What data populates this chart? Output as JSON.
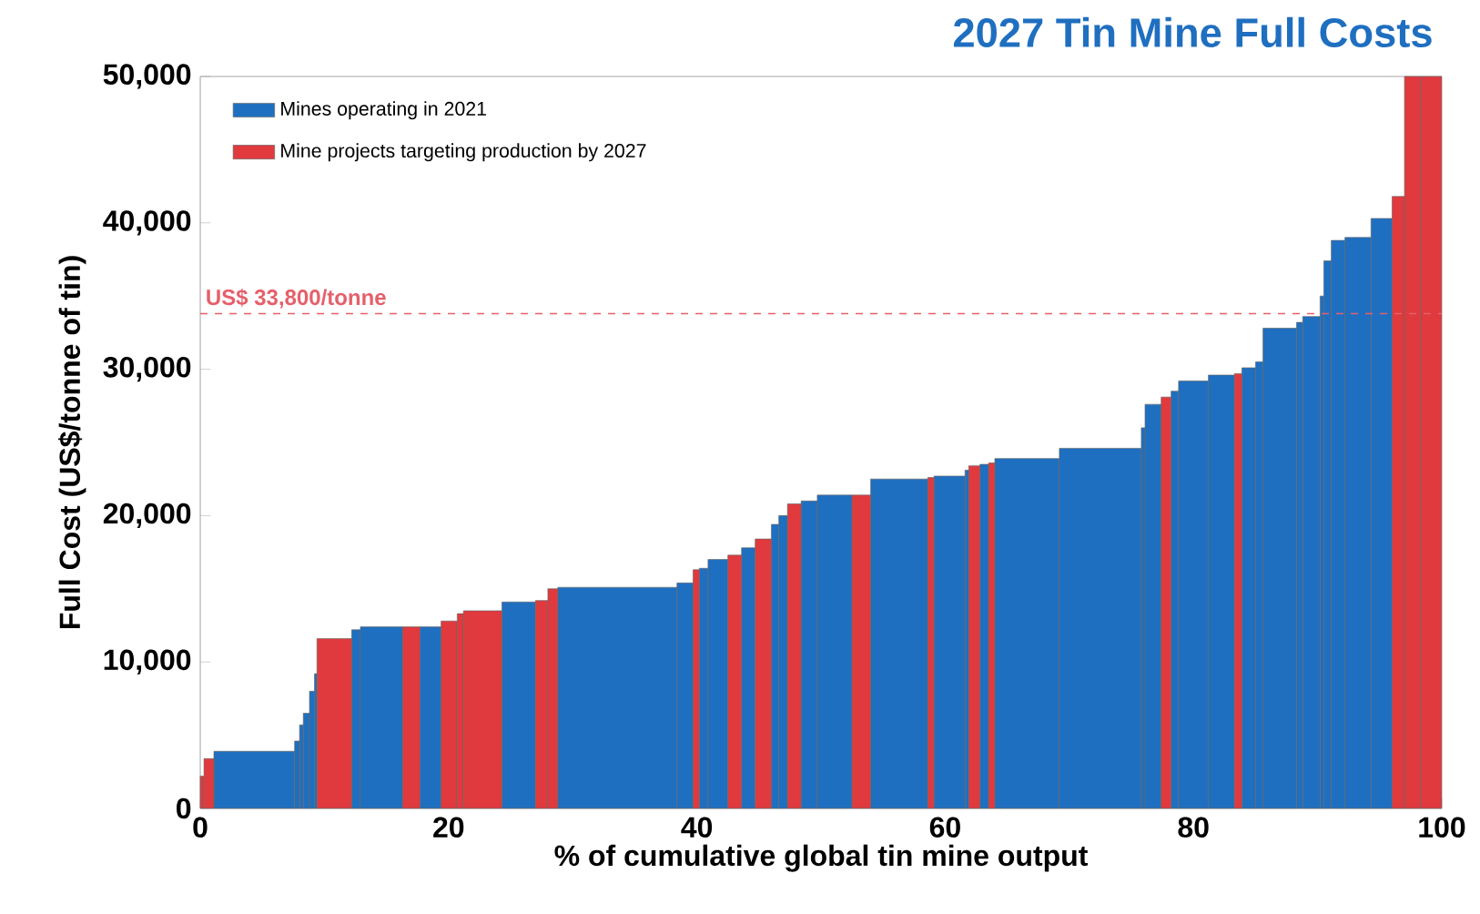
{
  "chart_data": {
    "type": "histogram",
    "title": "2027 Tin Mine Full Costs",
    "xlabel": "% of cumulative global tin mine output",
    "ylabel": "Full Cost (US$/tonne of tin)",
    "bins": [
      0,
      0.3,
      1.1,
      7.6,
      8.0,
      8.3,
      8.8,
      9.2,
      9.4,
      12.2,
      12.9,
      16.3,
      17.7,
      19.4,
      20.7,
      21.2,
      24.3,
      27.0,
      28.0,
      28.8,
      38.4,
      39.7,
      40.2,
      40.9,
      42.5,
      43.6,
      44.7,
      46.0,
      46.6,
      47.3,
      48.4,
      49.7,
      52.5,
      54.0,
      58.6,
      59.1,
      61.6,
      61.9,
      62.8,
      63.5,
      64.0,
      69.2,
      75.8,
      76.1,
      77.4,
      78.2,
      78.8,
      81.2,
      83.3,
      83.9,
      85.0,
      85.6,
      88.3,
      88.8,
      90.2,
      90.5,
      91.1,
      92.2,
      94.3,
      96.0,
      97.0,
      98.3,
      100
    ],
    "series": [
      {
        "name": "Mines operating in 2021",
        "color": "#1f6fc0",
        "values": [
          null,
          null,
          3900,
          4600,
          5700,
          6500,
          8000,
          9200,
          null,
          12200,
          12400,
          null,
          12400,
          null,
          null,
          null,
          14100,
          null,
          null,
          15100,
          15400,
          null,
          16400,
          17000,
          null,
          17800,
          null,
          19400,
          20000,
          null,
          21000,
          21400,
          null,
          22500,
          null,
          22700,
          23100,
          null,
          23500,
          null,
          23900,
          24600,
          26000,
          27600,
          null,
          28500,
          29200,
          29600,
          null,
          30100,
          30500,
          32800,
          33200,
          33600,
          35000,
          37400,
          38800,
          39000,
          40300,
          null,
          null,
          null
        ]
      },
      {
        "name": "Mine projects targeting production by 2027",
        "color": "#e0393e",
        "values": [
          2200,
          3400,
          null,
          null,
          null,
          null,
          null,
          null,
          11600,
          null,
          null,
          12400,
          null,
          12800,
          13300,
          13500,
          null,
          14200,
          15000,
          null,
          null,
          16300,
          null,
          null,
          17300,
          null,
          18400,
          null,
          null,
          20800,
          null,
          null,
          21400,
          null,
          22600,
          null,
          null,
          23400,
          null,
          23600,
          null,
          null,
          null,
          null,
          28100,
          null,
          null,
          null,
          29700,
          null,
          null,
          null,
          null,
          null,
          null,
          null,
          null,
          null,
          null,
          41800,
          50000,
          50000
        ]
      }
    ],
    "xlim": [
      0,
      100
    ],
    "ylim": [
      0,
      50000
    ],
    "xticks": [
      0,
      20,
      40,
      60,
      80,
      100
    ],
    "yticks": [
      0,
      {
        "value": 10000,
        "label": "10,000"
      },
      {
        "value": 20000,
        "label": "20,000"
      },
      {
        "value": 30000,
        "label": "30,000"
      },
      {
        "value": 40000,
        "label": "40,000"
      },
      {
        "value": 50000,
        "label": "50,000"
      }
    ],
    "ref_lines": [
      {
        "axis": "y",
        "value": 33800,
        "label": "US$ 33,800/tonne",
        "color": "#e5606a",
        "line_style": "dashed"
      }
    ],
    "legend": "top left",
    "grid": false
  }
}
